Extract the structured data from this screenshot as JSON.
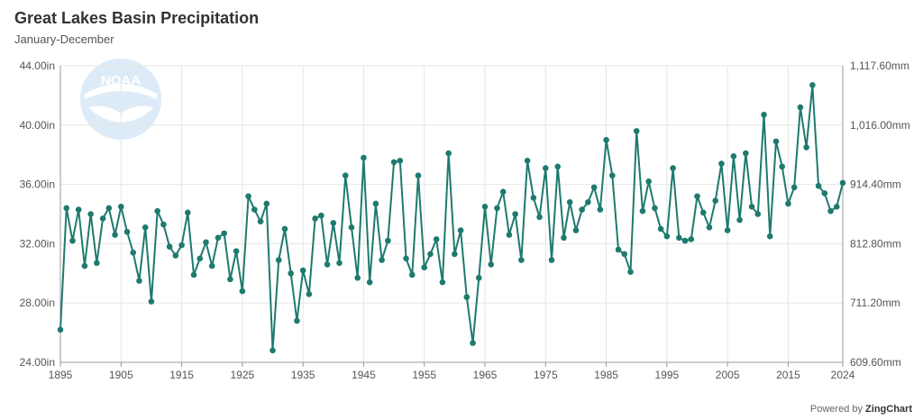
{
  "title": "Great Lakes Basin Precipitation",
  "subtitle": "January-December",
  "logo_text": "NOAA",
  "credit": {
    "prefix": "Powered by ",
    "brand": "ZingChart"
  },
  "colors": {
    "series": "#1e7a6e",
    "grid": "#e6e6e6",
    "axis": "#999999",
    "text": "#555555",
    "logo": "#dcebf7"
  },
  "chart_data": {
    "type": "line",
    "title": "Great Lakes Basin Precipitation",
    "subtitle": "January-December",
    "xlim": [
      1895,
      2024
    ],
    "ylim": [
      24,
      44
    ],
    "y_ticks": [
      24,
      28,
      32,
      36,
      40,
      44
    ],
    "y_tick_labels": [
      "24.00in",
      "28.00in",
      "32.00in",
      "36.00in",
      "40.00in",
      "44.00in"
    ],
    "y2_tick_labels": [
      "609.60mm",
      "711.20mm",
      "812.80mm",
      "914.40mm",
      "1,016.00mm",
      "1,117.60mm"
    ],
    "x_ticks": [
      1895,
      1905,
      1915,
      1925,
      1935,
      1945,
      1955,
      1965,
      1975,
      1985,
      1995,
      2005,
      2015,
      2024
    ],
    "x_tick_labels": [
      "1895",
      "1905",
      "1915",
      "1925",
      "1935",
      "1945",
      "1955",
      "1965",
      "1975",
      "1985",
      "1995",
      "2005",
      "2015",
      "2024"
    ],
    "grid": true,
    "legend": "none",
    "series": [
      {
        "x": [
          1895,
          1896,
          1897,
          1898,
          1899,
          1900,
          1901,
          1902,
          1903,
          1904,
          1905,
          1906,
          1907,
          1908,
          1909,
          1910,
          1911,
          1912,
          1913,
          1914,
          1915,
          1916,
          1917,
          1918,
          1919,
          1920,
          1921,
          1922,
          1923,
          1924,
          1925,
          1926,
          1927,
          1928,
          1929,
          1930,
          1931,
          1932,
          1933,
          1934,
          1935,
          1936,
          1937,
          1938,
          1939,
          1940,
          1941,
          1942,
          1943,
          1944,
          1945,
          1946,
          1947,
          1948,
          1949,
          1950,
          1951,
          1952,
          1953,
          1954,
          1955,
          1956,
          1957,
          1958,
          1959,
          1960,
          1961,
          1962,
          1963,
          1964,
          1965,
          1966,
          1967,
          1968,
          1969,
          1970,
          1971,
          1972,
          1973,
          1974,
          1975,
          1976,
          1977,
          1978,
          1979,
          1980,
          1981,
          1982,
          1983,
          1984,
          1985,
          1986,
          1987,
          1988,
          1989,
          1990,
          1991,
          1992,
          1993,
          1994,
          1995,
          1996,
          1997,
          1998,
          1999,
          2000,
          2001,
          2002,
          2003,
          2004,
          2005,
          2006,
          2007,
          2008,
          2009,
          2010,
          2011,
          2012,
          2013,
          2014,
          2015,
          2016,
          2017,
          2018,
          2019,
          2020,
          2021,
          2022,
          2023,
          2024
        ],
        "values": [
          26.2,
          34.4,
          32.2,
          34.3,
          30.5,
          34.0,
          30.7,
          33.7,
          34.4,
          32.6,
          34.5,
          32.8,
          31.4,
          29.5,
          33.1,
          28.1,
          34.2,
          33.3,
          31.8,
          31.2,
          31.9,
          34.1,
          29.9,
          31.0,
          32.1,
          30.5,
          32.4,
          32.7,
          29.6,
          31.5,
          28.8,
          35.2,
          34.3,
          33.5,
          34.7,
          24.8,
          30.9,
          33.0,
          30.0,
          26.8,
          30.2,
          28.6,
          33.7,
          33.9,
          30.6,
          33.4,
          30.7,
          36.6,
          33.1,
          29.7,
          37.8,
          29.4,
          34.7,
          30.9,
          32.2,
          37.5,
          37.6,
          31.0,
          29.9,
          36.6,
          30.4,
          31.3,
          32.3,
          29.4,
          38.1,
          31.3,
          32.9,
          28.4,
          25.3,
          29.7,
          34.5,
          30.6,
          34.4,
          35.5,
          32.6,
          34.0,
          30.9,
          37.6,
          35.1,
          33.8,
          37.1,
          30.9,
          37.2,
          32.4,
          34.8,
          32.9,
          34.3,
          34.8,
          35.8,
          34.3,
          39.0,
          36.6,
          31.6,
          31.3,
          30.1,
          39.6,
          34.2,
          36.2,
          34.4,
          33.0,
          32.5,
          37.1,
          32.4,
          32.2,
          32.3,
          35.2,
          34.1,
          33.1,
          34.9,
          37.4,
          32.9,
          37.9,
          33.6,
          38.1,
          34.5,
          34.0,
          40.7,
          32.5,
          38.9,
          37.2,
          34.7,
          35.8,
          41.2,
          38.5,
          42.7,
          35.9,
          35.4,
          34.2,
          34.5,
          36.1
        ]
      }
    ]
  }
}
